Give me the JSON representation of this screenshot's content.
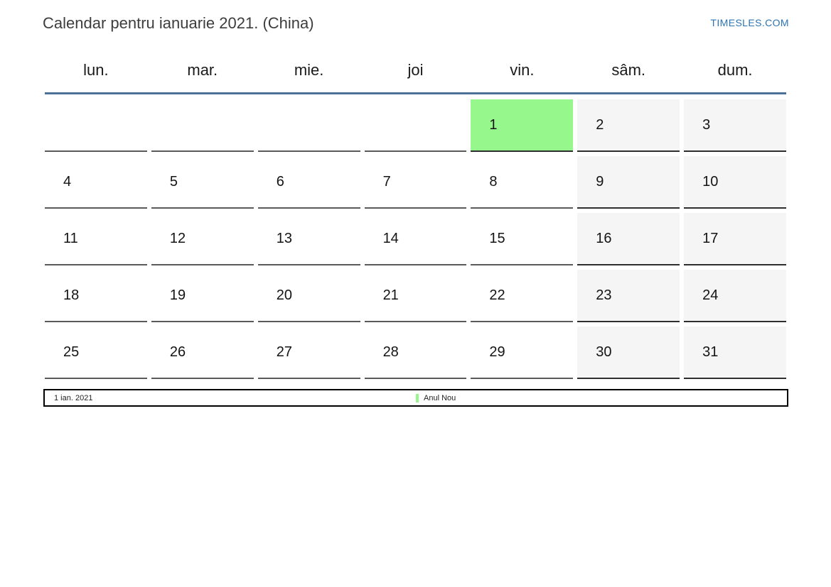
{
  "page": {
    "title": "Calendar pentru ianuarie 2021. (China)",
    "site_link": "TIMESLES.COM"
  },
  "calendar": {
    "weekdays": [
      "lun.",
      "mar.",
      "mie.",
      "joi",
      "vin.",
      "sâm.",
      "dum."
    ],
    "cells": [
      {
        "day": "",
        "type": "blank"
      },
      {
        "day": "",
        "type": "blank"
      },
      {
        "day": "",
        "type": "blank"
      },
      {
        "day": "",
        "type": "blank"
      },
      {
        "day": "1",
        "type": "holiday"
      },
      {
        "day": "2",
        "type": "weekend"
      },
      {
        "day": "3",
        "type": "weekend"
      },
      {
        "day": "4",
        "type": "day"
      },
      {
        "day": "5",
        "type": "day"
      },
      {
        "day": "6",
        "type": "day"
      },
      {
        "day": "7",
        "type": "day"
      },
      {
        "day": "8",
        "type": "day"
      },
      {
        "day": "9",
        "type": "weekend"
      },
      {
        "day": "10",
        "type": "weekend"
      },
      {
        "day": "11",
        "type": "day"
      },
      {
        "day": "12",
        "type": "day"
      },
      {
        "day": "13",
        "type": "day"
      },
      {
        "day": "14",
        "type": "day"
      },
      {
        "day": "15",
        "type": "day"
      },
      {
        "day": "16",
        "type": "weekend"
      },
      {
        "day": "17",
        "type": "weekend"
      },
      {
        "day": "18",
        "type": "day"
      },
      {
        "day": "19",
        "type": "day"
      },
      {
        "day": "20",
        "type": "day"
      },
      {
        "day": "21",
        "type": "day"
      },
      {
        "day": "22",
        "type": "day"
      },
      {
        "day": "23",
        "type": "weekend"
      },
      {
        "day": "24",
        "type": "weekend"
      },
      {
        "day": "25",
        "type": "day"
      },
      {
        "day": "26",
        "type": "day"
      },
      {
        "day": "27",
        "type": "day"
      },
      {
        "day": "28",
        "type": "day"
      },
      {
        "day": "29",
        "type": "day"
      },
      {
        "day": "30",
        "type": "weekend"
      },
      {
        "day": "31",
        "type": "weekend"
      }
    ]
  },
  "legend": {
    "date": "1 ian. 2021",
    "holiday": "Anul Nou"
  },
  "colors": {
    "link_blue": "#2d74b5",
    "header_line": "#4d7096",
    "holiday_green": "#95f78c",
    "weekend_bg": "#f5f5f5"
  }
}
